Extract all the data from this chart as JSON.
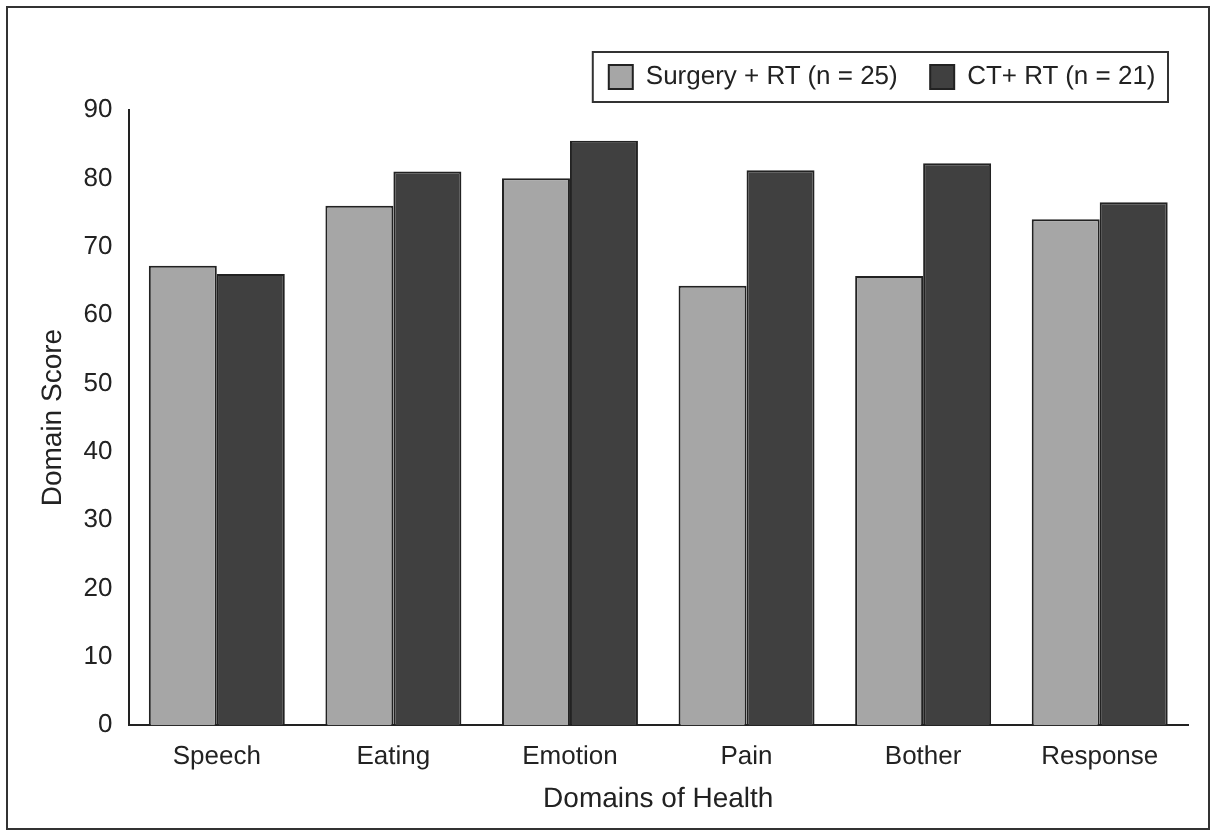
{
  "chart_data": {
    "type": "bar",
    "xlabel": "Domains of Health",
    "ylabel": "Domain Score",
    "categories": [
      "Speech",
      "Eating",
      "Emotion",
      "Pain",
      "Bother",
      "Response"
    ],
    "series": [
      {
        "name": "Surgery + RT (n = 25)",
        "color": "#a6a6a6",
        "values": [
          67.2,
          76,
          80,
          64.3,
          65.7,
          74
        ]
      },
      {
        "name": "CT+ RT (n = 21)",
        "color": "#404040",
        "values": [
          66,
          81,
          85.5,
          81.2,
          82.2,
          76.5
        ]
      }
    ],
    "ylim": [
      0,
      90
    ],
    "yticks": [
      0,
      10,
      20,
      30,
      40,
      50,
      60,
      70,
      80,
      90
    ],
    "grid": false,
    "legend": "top right"
  }
}
